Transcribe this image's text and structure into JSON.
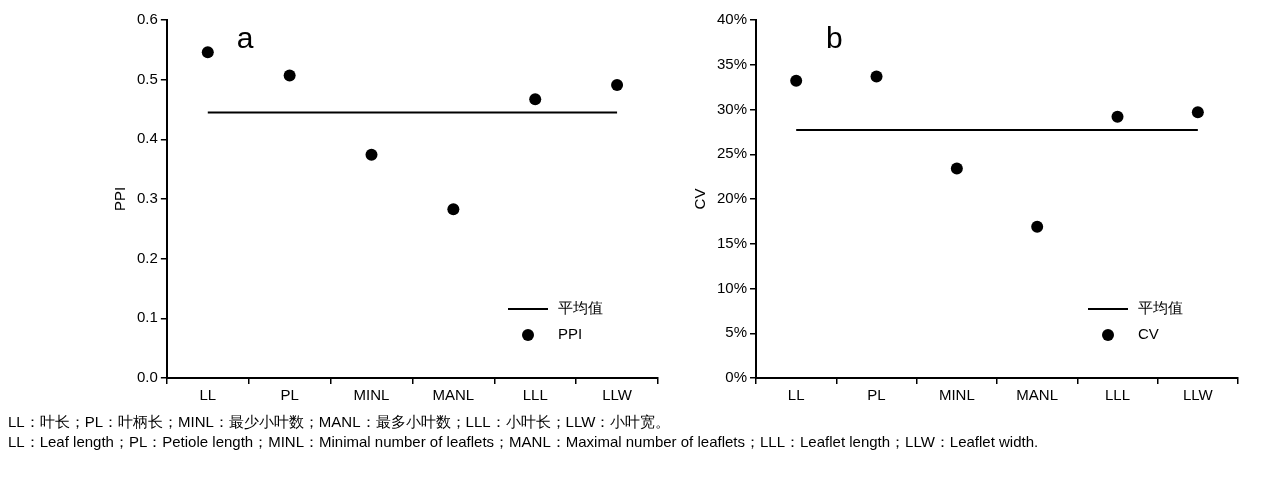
{
  "chart_data": [
    {
      "type": "scatter",
      "title": "a",
      "ylabel": "PPI",
      "categories": [
        "LL",
        "PL",
        "MINL",
        "MANL",
        "LLL",
        "LLW"
      ],
      "ylim": [
        0,
        0.6
      ],
      "yticks": [
        {
          "value": 0,
          "label": "0.0"
        },
        0.1,
        0.2,
        0.3,
        0.4,
        0.5,
        0.6
      ],
      "grid": false,
      "legend": "bottom right",
      "series": [
        {
          "name": "平均值",
          "type": "line",
          "marker": "none",
          "line_style": "solid",
          "color": "#000000",
          "values": [
            0.445,
            0.445,
            0.445,
            0.445,
            0.445,
            0.445
          ]
        },
        {
          "name": "PPI",
          "type": "scatter",
          "marker": "circle",
          "color": "#000000",
          "values": [
            0.546,
            0.507,
            0.374,
            0.283,
            0.467,
            0.491
          ]
        }
      ]
    },
    {
      "type": "scatter",
      "title": "b",
      "ylabel": "CV",
      "categories": [
        "LL",
        "PL",
        "MINL",
        "MANL",
        "LLL",
        "LLW"
      ],
      "ylim": [
        0,
        40
      ],
      "yticks": [
        {
          "value": 0,
          "label": "0%"
        },
        {
          "value": 5,
          "label": "5%"
        },
        {
          "value": 10,
          "label": "10%"
        },
        {
          "value": 15,
          "label": "15%"
        },
        {
          "value": 20,
          "label": "20%"
        },
        {
          "value": 25,
          "label": "25%"
        },
        {
          "value": 30,
          "label": "30%"
        },
        {
          "value": 35,
          "label": "35%"
        },
        {
          "value": 40,
          "label": "40%"
        }
      ],
      "grid": false,
      "legend": "bottom right",
      "series": [
        {
          "name": "平均值",
          "type": "line",
          "marker": "none",
          "line_style": "solid",
          "color": "#000000",
          "values": [
            27.7,
            27.7,
            27.7,
            27.7,
            27.7,
            27.7
          ]
        },
        {
          "name": "CV",
          "type": "scatter",
          "marker": "circle",
          "color": "#000000",
          "values": [
            33.2,
            33.7,
            23.4,
            16.9,
            29.2,
            29.7
          ]
        }
      ],
      "annotations": [
        "LL：叶长；PL：叶柄长；MINL：最少小叶数；MANL：最多小叶数；LLL：小叶长；LLW：小叶宽。",
        "LL：Leaf length；PL：Petiole length；MINL：Minimal number of leaflets；MANL：Maximal number of leaflets；LLL：Leaflet length；LLW：Leaflet width."
      ]
    }
  ]
}
